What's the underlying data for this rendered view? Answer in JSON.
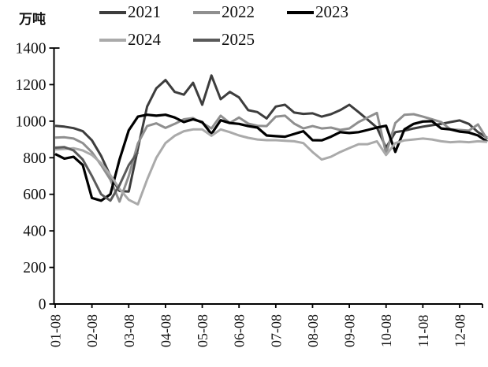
{
  "chart_data": {
    "type": "line",
    "title": "",
    "ylabel": "万吨",
    "xlabel": "",
    "ylim": [
      0,
      1400
    ],
    "y_ticks": [
      0,
      200,
      400,
      600,
      800,
      1000,
      1200,
      1400
    ],
    "x_tick_labels": [
      "01-08",
      "02-08",
      "03-08",
      "04-08",
      "05-08",
      "06-08",
      "07-08",
      "08-08",
      "09-08",
      "10-08",
      "11-08",
      "12-08"
    ],
    "x_frequency": "weekly",
    "points_per_month": 4,
    "grid": "off",
    "legend_position": "top",
    "legend_rows": [
      [
        "2021",
        "2022",
        "2023"
      ],
      [
        "2024",
        "2025"
      ]
    ],
    "series": [
      {
        "name": "2021",
        "color": "#3d3d3d",
        "values": [
          975,
          970,
          962,
          945,
          895,
          810,
          700,
          618,
          615,
          850,
          1080,
          1180,
          1225,
          1160,
          1145,
          1210,
          1090,
          1250,
          1120,
          1160,
          1130,
          1060,
          1050,
          1015,
          1080,
          1090,
          1047,
          1040,
          1043,
          1025,
          1038,
          1060,
          1090,
          1050,
          1008,
          965,
          855,
          940,
          948,
          960,
          970,
          978,
          985,
          995,
          1004,
          985,
          940,
          909
        ]
      },
      {
        "name": "2022",
        "color": "#8f8f8f",
        "values": [
          910,
          912,
          905,
          880,
          830,
          760,
          680,
          560,
          700,
          878,
          973,
          988,
          963,
          985,
          1010,
          1017,
          990,
          960,
          1030,
          990,
          1020,
          987,
          975,
          973,
          1025,
          1030,
          987,
          960,
          973,
          960,
          965,
          952,
          960,
          995,
          1020,
          1045,
          823,
          990,
          1035,
          1038,
          1025,
          1010,
          995,
          955,
          952,
          948,
          982,
          900
        ]
      },
      {
        "name": "2023",
        "color": "#000000",
        "values": [
          820,
          795,
          805,
          760,
          580,
          565,
          600,
          790,
          950,
          1025,
          1035,
          1030,
          1035,
          1020,
          995,
          1010,
          995,
          930,
          1005,
          990,
          985,
          973,
          965,
          922,
          918,
          915,
          930,
          945,
          896,
          895,
          915,
          940,
          935,
          940,
          952,
          965,
          975,
          832,
          955,
          985,
          998,
          1000,
          960,
          955,
          943,
          938,
          922,
          888
        ]
      },
      {
        "name": "2024",
        "color": "#aaaaaa",
        "values": [
          845,
          848,
          852,
          840,
          815,
          770,
          705,
          630,
          570,
          545,
          680,
          800,
          880,
          920,
          945,
          955,
          955,
          920,
          955,
          940,
          922,
          909,
          900,
          896,
          896,
          893,
          890,
          880,
          831,
          790,
          805,
          831,
          853,
          874,
          874,
          890,
          815,
          880,
          895,
          900,
          905,
          900,
          890,
          885,
          888,
          885,
          890,
          887
        ]
      },
      {
        "name": "2025",
        "color": "#5a5a5a",
        "values": [
          855,
          858,
          840,
          790,
          700,
          600,
          565,
          650,
          760,
          830
        ]
      }
    ]
  }
}
